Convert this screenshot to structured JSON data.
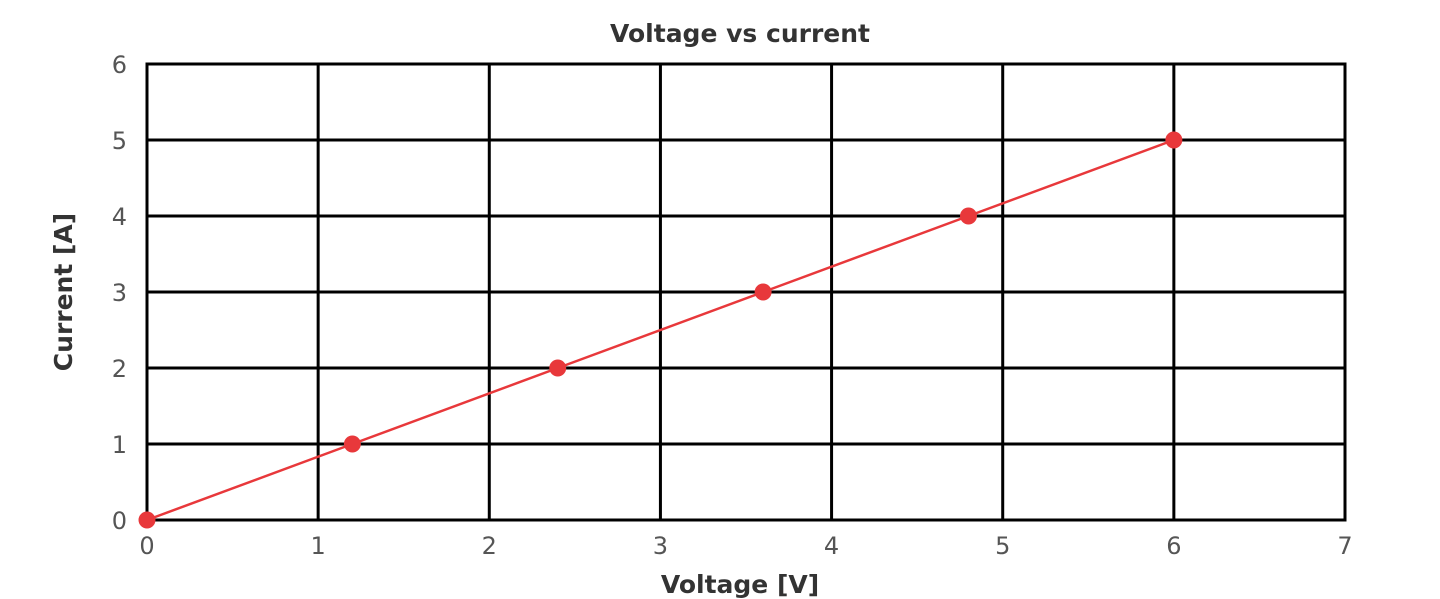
{
  "chart_data": {
    "type": "line",
    "title": "Voltage vs current",
    "xlabel": "Voltage [V]",
    "ylabel": "Current [A]",
    "xlim": [
      0,
      7
    ],
    "ylim": [
      0,
      6
    ],
    "x_ticks": [
      "0",
      "1",
      "2",
      "3",
      "4",
      "5",
      "6",
      "7"
    ],
    "y_ticks": [
      "0",
      "1",
      "2",
      "3",
      "4",
      "5",
      "6"
    ],
    "grid": true,
    "series": [
      {
        "color": "#e8383b",
        "points": [
          {
            "x": 0,
            "y": 0
          },
          {
            "x": 1.2,
            "y": 1
          },
          {
            "x": 2.4,
            "y": 2
          },
          {
            "x": 3.6,
            "y": 3
          },
          {
            "x": 4.8,
            "y": 4
          },
          {
            "x": 6,
            "y": 5
          }
        ]
      }
    ]
  }
}
